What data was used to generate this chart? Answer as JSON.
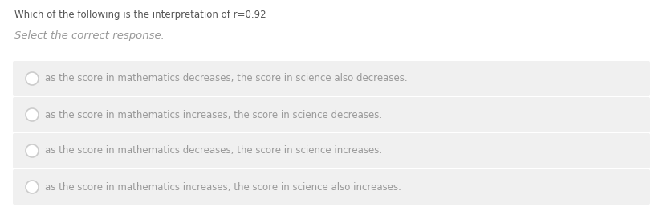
{
  "title": "Which of the following is the interpretation of r=0.92",
  "subtitle": "Select the correct response:",
  "options": [
    "as the score in mathematics decreases, the score in science also decreases.",
    "as the score in mathematics increases, the score in science decreases.",
    "as the score in mathematics decreases, the score in science increases.",
    "as the score in mathematics increases, the score in science also increases."
  ],
  "bg_color": "#ffffff",
  "option_bg_color": "#f0f0f0",
  "title_color": "#555555",
  "subtitle_color": "#999999",
  "option_text_color": "#999999",
  "title_fontsize": 8.5,
  "subtitle_fontsize": 9.5,
  "option_fontsize": 8.5,
  "radio_edge_color": "#cccccc",
  "radio_face_color": "#ffffff",
  "fig_width": 8.26,
  "fig_height": 2.68,
  "dpi": 100
}
